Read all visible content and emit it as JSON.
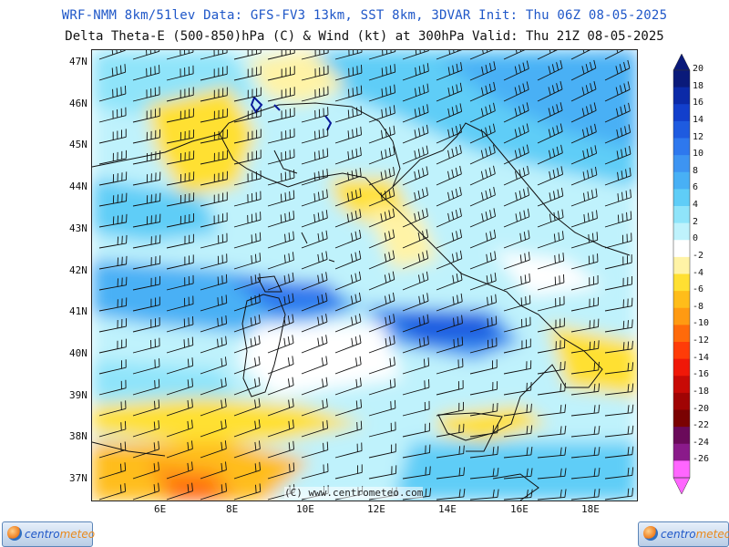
{
  "header": {
    "line1": "WRF-NMM 8km/51lev  Data: GFS-FV3 13km, SST 8km, 3DVAR  Init: Thu 06Z 08-05-2025",
    "line2": "Delta Theta-E (500-850)hPa (C) & Wind (kt) at 300hPa   Valid: Thu 21Z 08-05-2025"
  },
  "map": {
    "lat_labels": [
      "47N",
      "46N",
      "45N",
      "44N",
      "43N",
      "42N",
      "41N",
      "40N",
      "39N",
      "38N",
      "37N"
    ],
    "lon_labels": [
      "6E",
      "8E",
      "10E",
      "12E",
      "14E",
      "16E",
      "18E"
    ],
    "copyright": "(C) www.centrometeo.com"
  },
  "colorbar": {
    "labels": [
      "20",
      "18",
      "16",
      "14",
      "12",
      "10",
      "8",
      "6",
      "4",
      "2",
      "0",
      "-2",
      "-4",
      "-6",
      "-8",
      "-10",
      "-12",
      "-14",
      "-16",
      "-18",
      "-20",
      "-22",
      "-24",
      "-26"
    ],
    "colors": [
      "#0a1a7a",
      "#0b2aa8",
      "#123fcc",
      "#1e5be0",
      "#2e78ee",
      "#3d94f2",
      "#48b0f5",
      "#5fcdf7",
      "#8fe4fa",
      "#bff2fc",
      "#ffffff",
      "#fff3a6",
      "#ffe032",
      "#ffbd1a",
      "#ff9a12",
      "#ff6a0a",
      "#ff3c08",
      "#f01808",
      "#c80a06",
      "#a00404",
      "#7a0202",
      "#6a0a5a",
      "#8a1a8a",
      "#ff66ff"
    ]
  },
  "logos": {
    "left_a": "centro",
    "left_b": "meteo",
    "right_a": "centro",
    "right_b": "meteo"
  }
}
